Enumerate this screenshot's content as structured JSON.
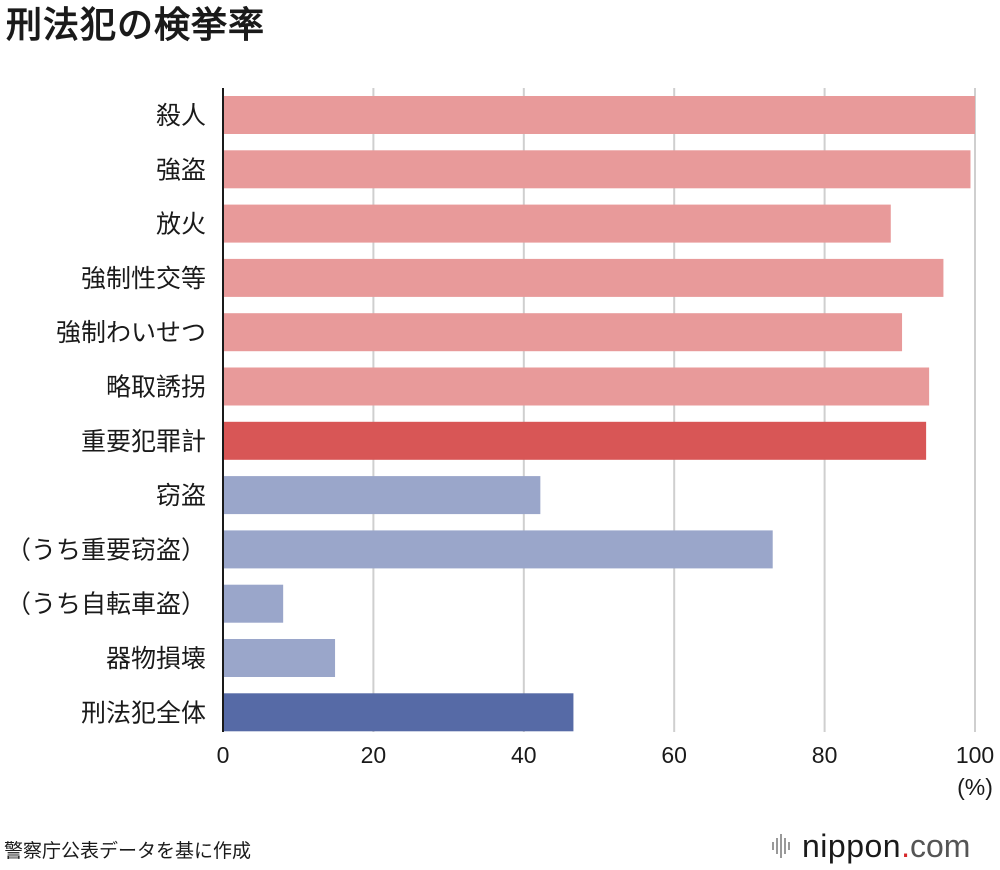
{
  "title": "刑法犯の検挙率",
  "source": "警察庁公表データを基に作成",
  "logo": {
    "name": "nippon",
    "dot": ".",
    "suffix": "com"
  },
  "colors": {
    "violent": "#e89a9a",
    "violent_total": "#d85656",
    "theft": "#9aa6ca",
    "overall": "#566aa6",
    "grid": "#cfcfcf",
    "axis": "#1a1a1a"
  },
  "chart_data": {
    "type": "bar",
    "orientation": "horizontal",
    "categories": [
      "殺人",
      "強盗",
      "放火",
      "強制性交等",
      "強制わいせつ",
      "略取誘拐",
      "重要犯罪計",
      "窃盗",
      "（うち重要窃盗）",
      "（うち自転車盗）",
      "器物損壊",
      "刑法犯全体"
    ],
    "values": [
      100,
      99.4,
      88.8,
      95.8,
      90.3,
      93.9,
      93.5,
      42.2,
      73.1,
      8.0,
      14.9,
      46.6
    ],
    "bar_colors": [
      "violent",
      "violent",
      "violent",
      "violent",
      "violent",
      "violent",
      "violent_total",
      "theft",
      "theft",
      "theft",
      "theft",
      "overall"
    ],
    "xlim": [
      0,
      100
    ],
    "xticks": [
      "0",
      "20",
      "40",
      "60",
      "80",
      "100"
    ],
    "xunit": "(%)",
    "grid": true
  }
}
